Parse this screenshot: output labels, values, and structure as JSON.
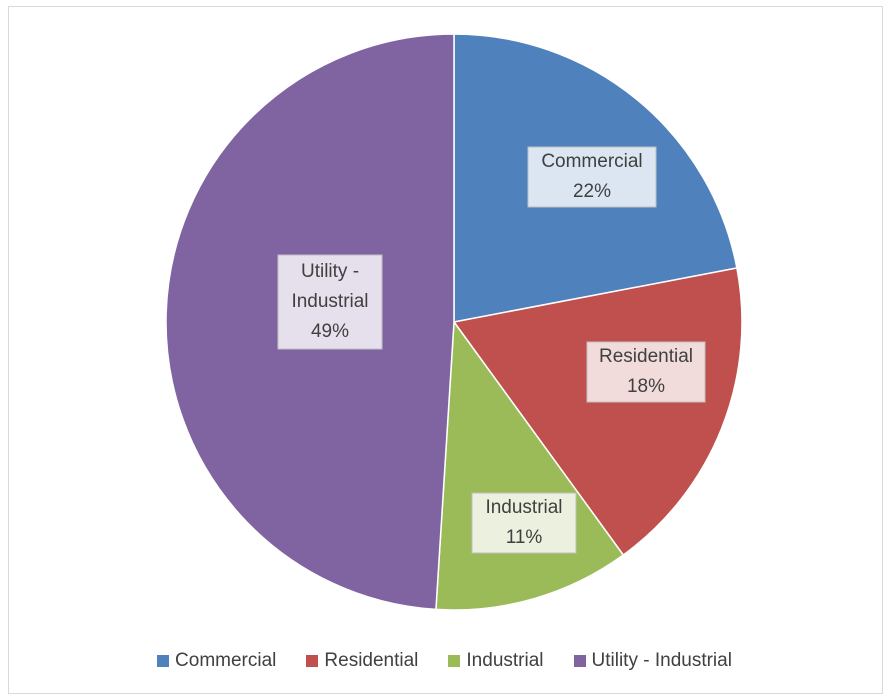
{
  "chart_data": {
    "type": "pie",
    "title": "",
    "slices": [
      {
        "label": "Commercial",
        "value": 22,
        "display": "22%",
        "color": "#4f81bd",
        "label_fill": "#dce6f2"
      },
      {
        "label": "Residential",
        "value": 18,
        "display": "18%",
        "color": "#c0504d",
        "label_fill": "#f2dcdb"
      },
      {
        "label": "Industrial",
        "value": 11,
        "display": "11%",
        "color": "#9bbb59",
        "label_fill": "#ebf1de"
      },
      {
        "label": "Utility - Industrial",
        "value": 49,
        "display": "49%",
        "color": "#8064a2",
        "label_fill": "#e6e0ec"
      }
    ],
    "legend_position": "bottom"
  }
}
